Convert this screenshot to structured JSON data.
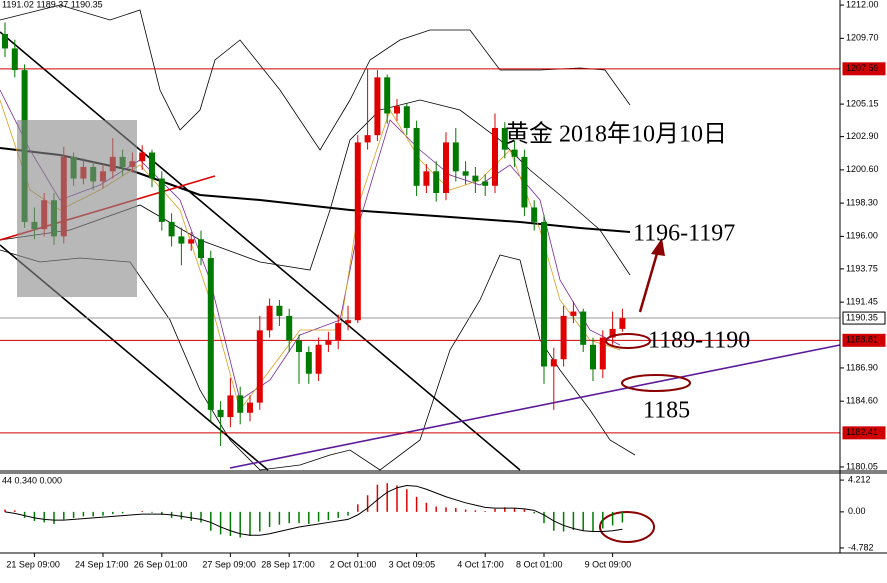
{
  "chart_data": {
    "type": "candlestick",
    "header": "1191.02 1189.37 1190.35",
    "annotations": [
      "黄金 2018年10月10日",
      "1196-1197",
      "1189-1190",
      "1185"
    ],
    "up_color": "#e00000",
    "down_color": "#007a00",
    "categories": [
      null,
      null,
      null,
      "21 Sep 09:00",
      null,
      null,
      null,
      null,
      null,
      null,
      "24 Sep 17:00",
      null,
      null,
      null,
      null,
      null,
      "26 Sep 01:00",
      null,
      null,
      null,
      null,
      null,
      null,
      "27 Sep 09:00",
      null,
      null,
      null,
      null,
      null,
      "28 Sep 17:00",
      null,
      null,
      null,
      null,
      null,
      null,
      "2 Oct 01:00",
      null,
      null,
      null,
      null,
      null,
      "3 Oct 09:05",
      null,
      null,
      null,
      null,
      null,
      null,
      "4 Oct 17:00",
      null,
      null,
      null,
      null,
      null,
      "8 Oct 01:00",
      null,
      null,
      null,
      null,
      null,
      null,
      "9 Oct 09:00",
      null
    ],
    "open": [
      1210.0,
      1209.0,
      1207.5,
      1197,
      1196.5,
      1198.5,
      1196,
      1201.5,
      1200,
      1200.8,
      1199.8,
      1200.5,
      1201.5,
      1200.8,
      1201.2,
      1201.8,
      1200,
      1197,
      1196,
      1195.5,
      1195.8,
      1194.5,
      1184,
      1183.5,
      1185,
      1183.8,
      1184.5,
      1189.5,
      1191.2,
      1190.5,
      1188.8,
      1188,
      1186.5,
      1188.5,
      1188.8,
      1190,
      1190.2,
      1202.5,
      1203,
      1207,
      1204.5,
      1205,
      1203.5,
      1199.5,
      1200.5,
      1199,
      1202.5,
      1200.5,
      1200.2,
      1199.8,
      1199.5,
      1203.5,
      1202,
      1201.5,
      1198,
      1197,
      1187,
      1187.5,
      1190.5,
      1190.8,
      1188.5,
      1186.8,
      1189,
      1189.6
    ],
    "high": [
      1210.8,
      1209.6,
      1207.9,
      1198,
      1199,
      1199,
      1202.2,
      1201.8,
      1201.4,
      1201.2,
      1201,
      1202.8,
      1202,
      1201.8,
      1202.3,
      1202,
      1200.5,
      1197.6,
      1196.6,
      1196.3,
      1196.4,
      1195,
      1184.6,
      1186.2,
      1185.6,
      1185,
      1190.5,
      1191.7,
      1191.6,
      1191,
      1189.2,
      1188.4,
      1189,
      1189.4,
      1190.6,
      1191.2,
      1203,
      1207.6,
      1207.5,
      1207.2,
      1205.5,
      1205.2,
      1204,
      1201,
      1201.2,
      1203.2,
      1203.5,
      1201.2,
      1200.8,
      1200.3,
      1204.5,
      1203.9,
      1202.6,
      1202,
      1198.5,
      1197.5,
      1188.3,
      1191.2,
      1191.5,
      1191,
      1189,
      1189.5,
      1190.8,
      1191
    ],
    "low": [
      1208.4,
      1207,
      1196.6,
      1195.8,
      1196,
      1195.4,
      1195.5,
      1199.5,
      1199.6,
      1199.2,
      1199.3,
      1200,
      1200.2,
      1200.4,
      1200.6,
      1199.4,
      1196.4,
      1195.3,
      1194,
      1195,
      1194,
      1183.2,
      1181.5,
      1182.8,
      1183,
      1183.2,
      1184,
      1189,
      1189.8,
      1188,
      1185.8,
      1185.8,
      1186,
      1188,
      1188.2,
      1189.5,
      1190,
      1202,
      1202.6,
      1203.8,
      1204,
      1203,
      1198.8,
      1199,
      1198.4,
      1198.5,
      1199.8,
      1199.6,
      1199,
      1198.8,
      1199,
      1201.4,
      1200.8,
      1197.4,
      1196.4,
      1185.8,
      1184,
      1187,
      1190,
      1188,
      1186,
      1186.2,
      1188.5,
      1189.4
    ],
    "close": [
      1209.0,
      1207.5,
      1197,
      1196.5,
      1198.5,
      1196,
      1201.5,
      1200,
      1200.8,
      1199.8,
      1200.5,
      1201.5,
      1200.8,
      1201.2,
      1201.8,
      1200,
      1197,
      1196,
      1195.5,
      1195.8,
      1194.5,
      1184,
      1183.5,
      1185,
      1183.8,
      1184.5,
      1189.5,
      1191.2,
      1190.5,
      1188.8,
      1188,
      1186.5,
      1188.5,
      1188.8,
      1190,
      1190.2,
      1202.5,
      1203,
      1207,
      1204.5,
      1205,
      1203.5,
      1199.5,
      1200.5,
      1199,
      1202.5,
      1200.5,
      1200.2,
      1199.8,
      1199.5,
      1203.5,
      1202,
      1201.5,
      1198,
      1197,
      1187,
      1187.5,
      1190.5,
      1190.8,
      1188.5,
      1186.8,
      1189,
      1189.6,
      1190.35
    ],
    "ylim": [
      1179.84,
      1212.35
    ],
    "yticks": [
      {
        "value": 1212,
        "label": "1212.00"
      },
      {
        "value": 1209.7,
        "label": "1209.70"
      },
      1205.15,
      {
        "value": 1202.9,
        "label": "1202.90"
      },
      {
        "value": 1200.6,
        "label": "1200.60"
      },
      {
        "value": 1198.3,
        "label": "1198.30"
      },
      {
        "value": 1196,
        "label": "1196.00"
      },
      1193.75,
      1191.45,
      {
        "value": 1186.9,
        "label": "1186.90"
      },
      {
        "value": 1184.6,
        "label": "1184.60"
      },
      1180.05
    ],
    "levels": [
      {
        "value": 1207.59,
        "color": "#d00000"
      },
      {
        "value": 1190.35,
        "color": "#999999"
      },
      {
        "value": 1188.81,
        "color": "#d00000"
      },
      {
        "value": 1182.41,
        "color": "#d00000"
      }
    ],
    "macd": {
      "label": "44 0.340 0.000",
      "ylim": [
        -5.45,
        5.15
      ],
      "yticks": [
        4.212,
        {
          "value": 0,
          "label": "0.00"
        },
        -4.782
      ],
      "histogram": [
        0.3,
        0.2,
        -0.8,
        -1.2,
        -1.4,
        -1.6,
        -1,
        -0.8,
        -0.6,
        -0.6,
        -0.5,
        -0.3,
        -0.2,
        0,
        0.1,
        -0.1,
        -0.4,
        -0.8,
        -1,
        -1.2,
        -1.4,
        -2.5,
        -3,
        -3.2,
        -3.4,
        -3.2,
        -2.6,
        -2,
        -1.7,
        -1.5,
        -1.5,
        -1.6,
        -1.3,
        -1.1,
        -0.8,
        -0.5,
        1,
        2.2,
        3.6,
        3.8,
        3.5,
        3,
        2,
        1.2,
        0.7,
        0.6,
        0.5,
        0.3,
        0.2,
        0.1,
        0.4,
        0.6,
        0.5,
        0.3,
        -0.2,
        -1.5,
        -2.5,
        -2.6,
        -2.4,
        -2.5,
        -2.6,
        -2.2,
        -1.8,
        -1.4
      ],
      "signal": [
        0,
        -0.2,
        -0.5,
        -0.8,
        -1,
        -1.1,
        -1.1,
        -1,
        -0.9,
        -0.8,
        -0.7,
        -0.6,
        -0.5,
        -0.4,
        -0.3,
        -0.3,
        -0.3,
        -0.4,
        -0.6,
        -0.8,
        -1,
        -1.4,
        -2,
        -2.5,
        -2.9,
        -3.1,
        -3.1,
        -2.9,
        -2.6,
        -2.3,
        -2,
        -1.8,
        -1.6,
        -1.4,
        -1.2,
        -1,
        -0.4,
        0.5,
        1.6,
        2.6,
        3.2,
        3.5,
        3.4,
        3,
        2.5,
        2,
        1.6,
        1.2,
        0.9,
        0.6,
        0.5,
        0.5,
        0.5,
        0.4,
        0.2,
        -0.4,
        -1.2,
        -1.8,
        -2.2,
        -2.5,
        -2.6,
        -2.6,
        -2.5,
        -2.3
      ]
    }
  }
}
